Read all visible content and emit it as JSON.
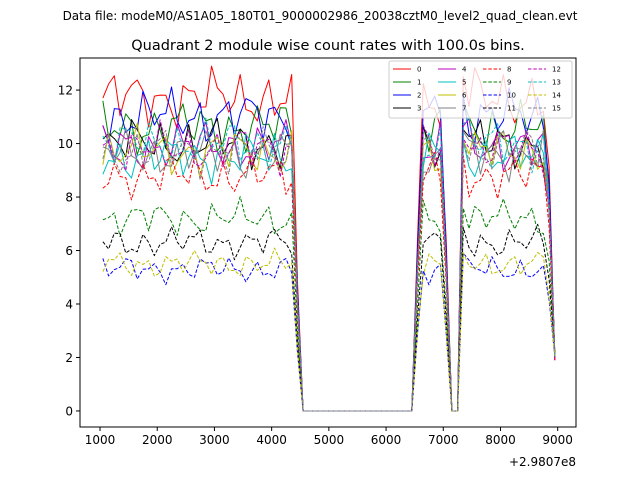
{
  "suptitle": "Data file: modeM0/AS1A05_180T01_9000002986_20038cztM0_level2_quad_clean.evt",
  "chart_data": {
    "type": "line",
    "title": "Quadrant 2 module wise count rates with 100.0s bins.",
    "xlabel": "",
    "ylabel": "",
    "x_offset_label": "+2.9807e8",
    "xlim": [
      650,
      9320
    ],
    "ylim": [
      -0.6,
      13.2
    ],
    "x_ticks": [
      1000,
      2000,
      3000,
      4000,
      5000,
      6000,
      7000,
      8000,
      9000
    ],
    "x_tick_labels": [
      "1000",
      "2000",
      "3000",
      "4000",
      "5000",
      "6000",
      "7000",
      "8000",
      "9000"
    ],
    "y_ticks": [
      0,
      2,
      4,
      6,
      8,
      10,
      12
    ],
    "y_tick_labels": [
      "0",
      "2",
      "4",
      "6",
      "8",
      "10",
      "12"
    ],
    "grid": false,
    "legend_location": "upper-right",
    "legend_columns": 4,
    "x_start": 1050,
    "x_step": 100,
    "series": [
      {
        "name": "0",
        "color": "#ff0000",
        "dashed": false,
        "level": 11.7
      },
      {
        "name": "1",
        "color": "#008000",
        "dashed": false,
        "level": 10.6
      },
      {
        "name": "2",
        "color": "#0000ff",
        "dashed": false,
        "level": 11.0
      },
      {
        "name": "3",
        "color": "#000000",
        "dashed": false,
        "level": 10.0
      },
      {
        "name": "4",
        "color": "#bf00bf",
        "dashed": false,
        "level": 9.9
      },
      {
        "name": "5",
        "color": "#00bfbf",
        "dashed": false,
        "level": 9.5
      },
      {
        "name": "6",
        "color": "#bfbf00",
        "dashed": false,
        "level": 9.7
      },
      {
        "name": "7",
        "color": "#808080",
        "dashed": false,
        "level": 9.6
      },
      {
        "name": "8",
        "color": "#ff0000",
        "dashed": true,
        "level": 8.8
      },
      {
        "name": "9",
        "color": "#008000",
        "dashed": true,
        "level": 7.2
      },
      {
        "name": "10",
        "color": "#0000ff",
        "dashed": true,
        "level": 5.3
      },
      {
        "name": "11",
        "color": "#000000",
        "dashed": true,
        "level": 6.3
      },
      {
        "name": "12",
        "color": "#bf00bf",
        "dashed": true,
        "level": 9.8
      },
      {
        "name": "13",
        "color": "#00bfbf",
        "dashed": true,
        "level": 10.0
      },
      {
        "name": "14",
        "color": "#bfbf00",
        "dashed": true,
        "level": 5.5
      },
      {
        "name": "15",
        "color": "#808080",
        "dashed": true,
        "level": 9.7
      }
    ],
    "shape_note": "Each module's count rate stays near its level from x=1050 to 4350, drops to 0 between 4550 and 6450, spikes to about its level around 6750-6950 and 7350, dips to 0 at 7150-7250, holds near its level from 7450 to 8750 and falls to about 2 at 8950."
  }
}
